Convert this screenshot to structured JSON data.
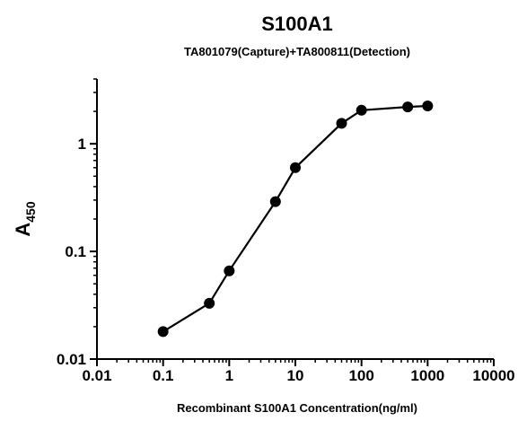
{
  "chart_data": {
    "type": "line",
    "title": "S100A1",
    "subtitle": "TA801079(Capture)+TA800811(Detection)",
    "xlabel": "Recombinant S100A1 Concentration(ng/ml)",
    "ylabel_main": "A",
    "ylabel_sub": "450",
    "x_scale": "log",
    "y_scale": "log",
    "xlim": [
      0.01,
      10000
    ],
    "ylim": [
      0.01,
      4
    ],
    "x_ticks": [
      {
        "value": 0.01,
        "label": "0.01"
      },
      {
        "value": 0.1,
        "label": "0.1"
      },
      {
        "value": 1,
        "label": "1"
      },
      {
        "value": 10,
        "label": "10"
      },
      {
        "value": 100,
        "label": "100"
      },
      {
        "value": 1000,
        "label": "1000"
      },
      {
        "value": 10000,
        "label": "10000"
      }
    ],
    "y_ticks": [
      {
        "value": 0.01,
        "label": "0.01"
      },
      {
        "value": 0.1,
        "label": "0.1"
      },
      {
        "value": 1,
        "label": "1"
      }
    ],
    "grid": false,
    "series": [
      {
        "x": [
          0.1,
          0.5,
          1,
          5,
          10,
          50,
          100,
          500,
          1000
        ],
        "y": [
          0.018,
          0.033,
          0.066,
          0.29,
          0.6,
          1.55,
          2.05,
          2.2,
          2.25
        ]
      }
    ],
    "colors": {
      "line": "#000000",
      "marker": "#000000",
      "axis": "#000000"
    }
  }
}
